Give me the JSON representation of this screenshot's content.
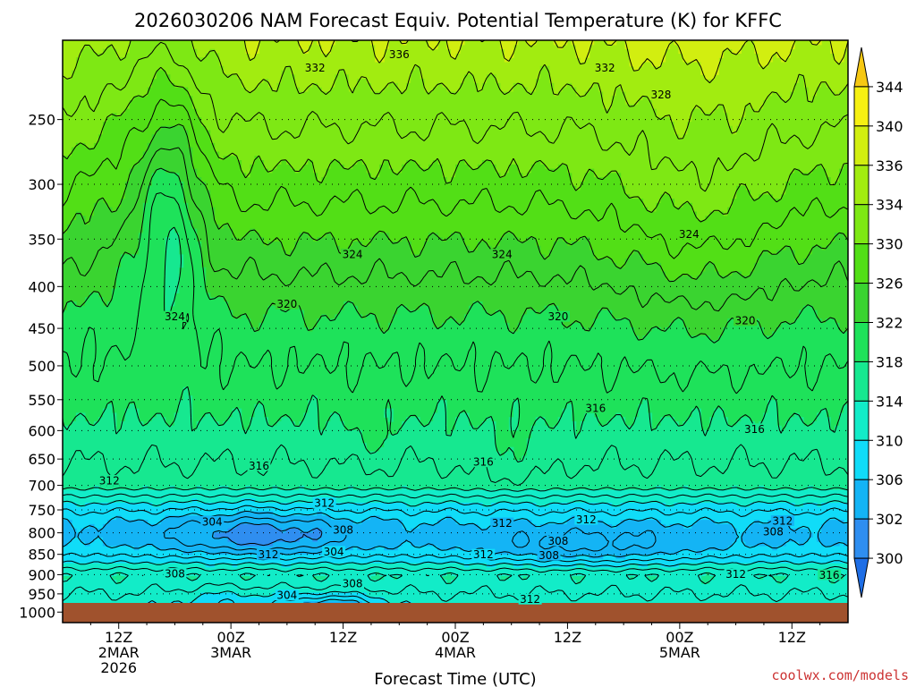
{
  "chart_data": {
    "type": "heatmap",
    "title": "2026030206 NAM Forecast Equiv. Potential Temperature (K) for KFFC",
    "xlabel": "Forecast Time (UTC)",
    "ylabel": "",
    "y_scale": "log",
    "y_ticks": [
      250,
      300,
      350,
      400,
      450,
      500,
      550,
      600,
      650,
      700,
      750,
      800,
      850,
      900,
      950,
      1000
    ],
    "y_tick_labels": [
      "250",
      "300",
      "350",
      "400",
      "450",
      "500",
      "550",
      "600",
      "650",
      "700",
      "750",
      "800",
      "850",
      "900",
      "950",
      "1000"
    ],
    "ylim": [
      1030,
      200
    ],
    "x_ticks": [
      {
        "hour": 12,
        "line1": "12Z",
        "line2": "2MAR",
        "line3": "2026"
      },
      {
        "hour": 24,
        "line1": "00Z",
        "line2": "3MAR",
        "line3": ""
      },
      {
        "hour": 36,
        "line1": "12Z",
        "line2": "",
        "line3": ""
      },
      {
        "hour": 48,
        "line1": "00Z",
        "line2": "4MAR",
        "line3": ""
      },
      {
        "hour": 60,
        "line1": "12Z",
        "line2": "",
        "line3": ""
      },
      {
        "hour": 72,
        "line1": "00Z",
        "line2": "5MAR",
        "line3": ""
      },
      {
        "hour": 84,
        "line1": "12Z",
        "line2": "",
        "line3": ""
      }
    ],
    "xlim": [
      6,
      90
    ],
    "grid": true,
    "colorbar": {
      "levels": [
        298,
        300,
        302,
        306,
        310,
        314,
        318,
        322,
        326,
        330,
        334,
        336,
        340,
        344,
        346
      ],
      "tick_values": [
        300,
        302,
        306,
        310,
        314,
        318,
        322,
        326,
        330,
        334,
        336,
        340,
        344
      ],
      "tick_labels": [
        "300",
        "302",
        "306",
        "310",
        "314",
        "318",
        "322",
        "326",
        "330",
        "334",
        "336",
        "340",
        "344"
      ],
      "colors": [
        "#1e6ee6",
        "#2f8ef0",
        "#14b4f5",
        "#10dcf8",
        "#12ecc8",
        "#16e890",
        "#1ee25a",
        "#3ad430",
        "#52df16",
        "#7ee814",
        "#a2ec10",
        "#d2ee10",
        "#f6f012",
        "#f6c812"
      ]
    },
    "contour_levels": [
      300,
      302,
      304,
      306,
      308,
      310,
      312,
      314,
      316,
      318,
      320,
      322,
      324,
      326,
      328,
      330,
      332,
      334,
      336
    ],
    "contour_labels": [
      {
        "value": "336",
        "hour": 42,
        "p": 208
      },
      {
        "value": "332",
        "hour": 33,
        "p": 216
      },
      {
        "value": "332",
        "hour": 64,
        "p": 216
      },
      {
        "value": "328",
        "hour": 70,
        "p": 233
      },
      {
        "value": "324",
        "hour": 18,
        "p": 435
      },
      {
        "value": "324",
        "hour": 37,
        "p": 365
      },
      {
        "value": "324",
        "hour": 53,
        "p": 365
      },
      {
        "value": "324",
        "hour": 73,
        "p": 345
      },
      {
        "value": "320",
        "hour": 30,
        "p": 420
      },
      {
        "value": "320",
        "hour": 59,
        "p": 435
      },
      {
        "value": "320",
        "hour": 79,
        "p": 440
      },
      {
        "value": "316",
        "hour": 63,
        "p": 563
      },
      {
        "value": "316",
        "hour": 80,
        "p": 597
      },
      {
        "value": "316",
        "hour": 27,
        "p": 662
      },
      {
        "value": "316",
        "hour": 51,
        "p": 655
      },
      {
        "value": "316",
        "hour": 88,
        "p": 900
      },
      {
        "value": "312",
        "hour": 11,
        "p": 690
      },
      {
        "value": "312",
        "hour": 34,
        "p": 735
      },
      {
        "value": "312",
        "hour": 53,
        "p": 778
      },
      {
        "value": "312",
        "hour": 62,
        "p": 770
      },
      {
        "value": "312",
        "hour": 83,
        "p": 773
      },
      {
        "value": "312",
        "hour": 28,
        "p": 850
      },
      {
        "value": "312",
        "hour": 51,
        "p": 850
      },
      {
        "value": "312",
        "hour": 78,
        "p": 898
      },
      {
        "value": "312",
        "hour": 56,
        "p": 964
      },
      {
        "value": "308",
        "hour": 36,
        "p": 793
      },
      {
        "value": "308",
        "hour": 59,
        "p": 818
      },
      {
        "value": "308",
        "hour": 58,
        "p": 852
      },
      {
        "value": "308",
        "hour": 82,
        "p": 797
      },
      {
        "value": "308",
        "hour": 18,
        "p": 897
      },
      {
        "value": "308",
        "hour": 37,
        "p": 922
      },
      {
        "value": "304",
        "hour": 22,
        "p": 775
      },
      {
        "value": "304",
        "hour": 35,
        "p": 843
      },
      {
        "value": "304",
        "hour": 30,
        "p": 953
      }
    ]
  },
  "watermark": "coolwx.com/models",
  "colors": {
    "ground": "#a0522d",
    "axis": "#000000",
    "credit": "#cc3333"
  }
}
